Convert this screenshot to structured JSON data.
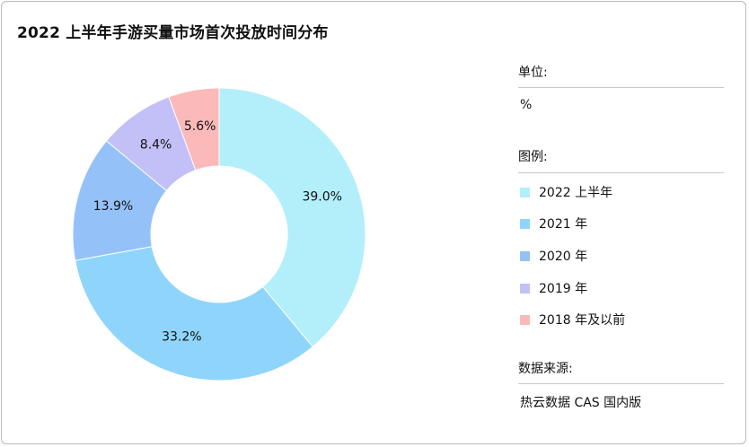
{
  "chart_data": {
    "type": "donut",
    "title": "2022 上半年手游买量市场首次投放时间分布",
    "slices": [
      {
        "name": "2022 上半年",
        "value": 39.0,
        "label": "39.0%",
        "color": "#b2effb"
      },
      {
        "name": "2021 年",
        "value": 33.2,
        "label": "33.2%",
        "color": "#8fd5fb"
      },
      {
        "name": "2020 年",
        "value": 13.9,
        "label": "13.9%",
        "color": "#94c2f8"
      },
      {
        "name": "2019 年",
        "value": 8.4,
        "label": "8.4%",
        "color": "#c2c0f7"
      },
      {
        "name": "2018 年及以前",
        "value": 5.6,
        "label": "5.6%",
        "color": "#fbb9b9"
      }
    ],
    "start": "12 o'clock",
    "direction": "clockwise"
  },
  "side": {
    "unit_head": "单位:",
    "unit_value": "%",
    "legend_head": "图例:",
    "source_head": "数据来源:",
    "source_value": "热云数据 CAS 国内版"
  }
}
